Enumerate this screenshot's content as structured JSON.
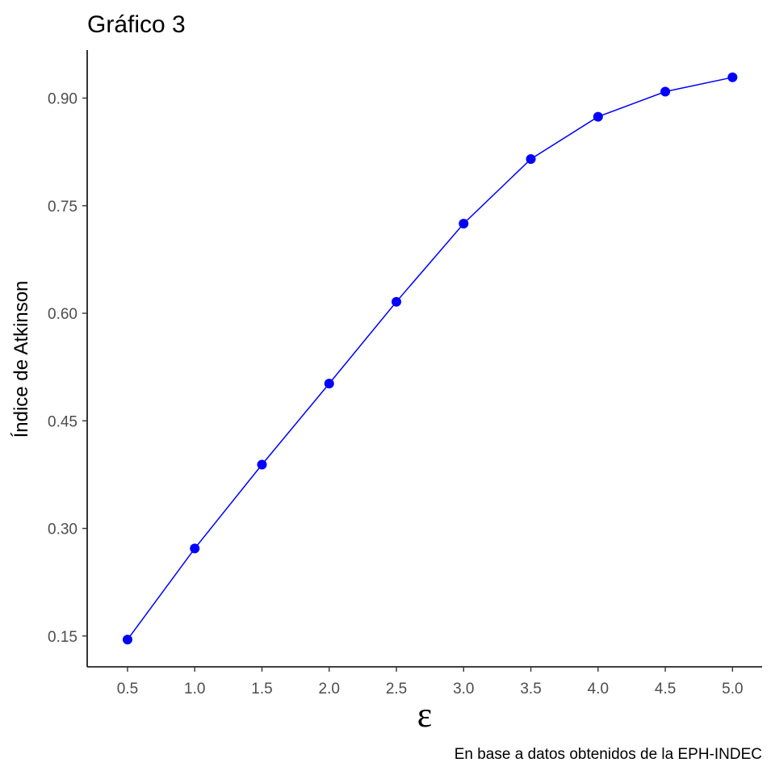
{
  "chart_data": {
    "type": "line",
    "title": "Gráfico 3",
    "xlabel": "ε",
    "ylabel": "Índice de Atkinson",
    "caption": "En base a datos obtenidos de la EPH-INDEC",
    "x": [
      0.5,
      1.0,
      1.5,
      2.0,
      2.5,
      3.0,
      3.5,
      4.0,
      4.5,
      5.0
    ],
    "series": [
      {
        "values": [
          0.145,
          0.272,
          0.389,
          0.502,
          0.616,
          0.725,
          0.815,
          0.874,
          0.909,
          0.929
        ]
      }
    ],
    "xticks": [
      "0.5",
      "1.0",
      "1.5",
      "2.0",
      "2.5",
      "3.0",
      "3.5",
      "4.0",
      "4.5",
      "5.0"
    ],
    "yticks": [
      "0.15",
      "0.30",
      "0.45",
      "0.60",
      "0.75",
      "0.90"
    ],
    "xlim": [
      0.2,
      5.22
    ],
    "ylim": [
      0.107,
      0.967
    ],
    "grid": false,
    "legend": "none",
    "color": "#0000ff"
  }
}
